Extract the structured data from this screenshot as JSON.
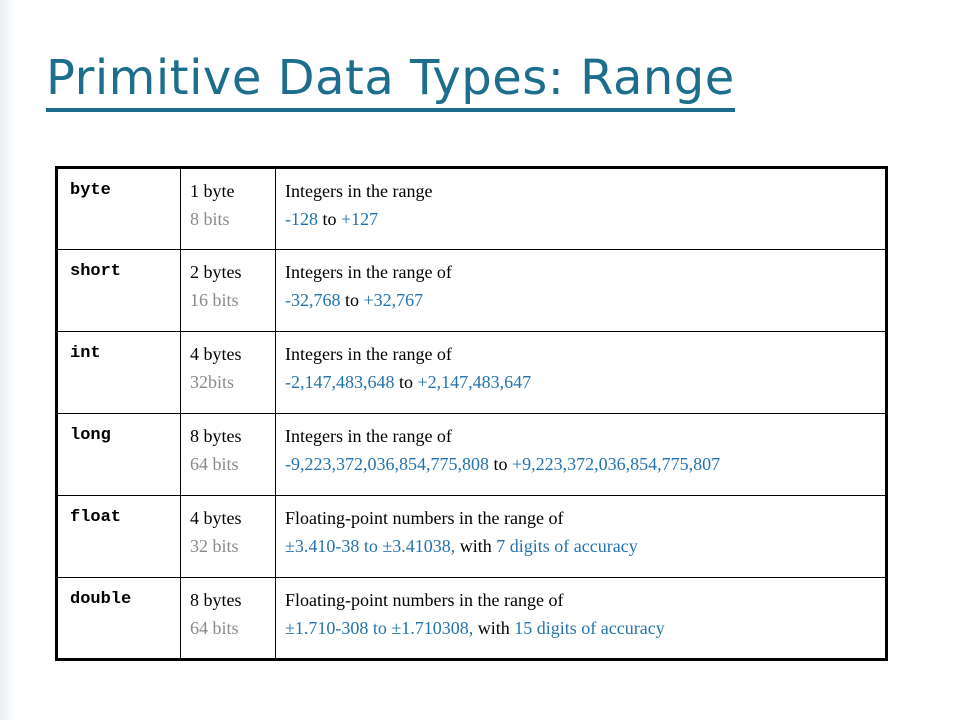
{
  "slide": {
    "title": "Primitive Data Types: Range"
  },
  "colors": {
    "title": "#1c6e8c",
    "range_values": "#2473ae",
    "bits_text": "#8a8a8a"
  },
  "table": {
    "rows": [
      {
        "type": "byte",
        "size_bytes": "1 byte",
        "size_bits": "8 bits",
        "desc_line1": "Integers in the range",
        "line2_a": "-128",
        "line2_b": " to ",
        "line2_c": "+127",
        "line2_d": "",
        "line2_e": ""
      },
      {
        "type": "short",
        "size_bytes": "2 bytes",
        "size_bits": "16 bits",
        "desc_line1": "Integers in the range of",
        "line2_a": "-32,768",
        "line2_b": " to ",
        "line2_c": "+32,767",
        "line2_d": "",
        "line2_e": ""
      },
      {
        "type": "int",
        "size_bytes": "4 bytes",
        "size_bits": "32bits",
        "desc_line1": "Integers in the range of",
        "line2_a": "-2,147,483,648",
        "line2_b": " to ",
        "line2_c": "+2,147,483,647",
        "line2_d": "",
        "line2_e": ""
      },
      {
        "type": "long",
        "size_bytes": "8 bytes",
        "size_bits": "64 bits",
        "desc_line1": "Integers in the range of",
        "line2_a": "-9,223,372,036,854,775,808",
        "line2_b": " to ",
        "line2_c": "+9,223,372,036,854,775,807",
        "line2_d": "",
        "line2_e": ""
      },
      {
        "type": "float",
        "size_bytes": "4 bytes",
        "size_bits": "32 bits",
        "desc_line1": "Floating-point numbers in the range of",
        "line2_a": "±3.410-38 to ±3.41038,",
        "line2_b": " with ",
        "line2_c": "7 digits of accuracy",
        "line2_d": "",
        "line2_e": ""
      },
      {
        "type": "double",
        "size_bytes": "8 bytes",
        "size_bits": "64 bits",
        "desc_line1": "Floating-point numbers in the range of",
        "line2_a": "±1.710-308 to ±1.710308,",
        "line2_b": " with ",
        "line2_c": "15 digits of accuracy",
        "line2_d": "",
        "line2_e": ""
      }
    ]
  }
}
